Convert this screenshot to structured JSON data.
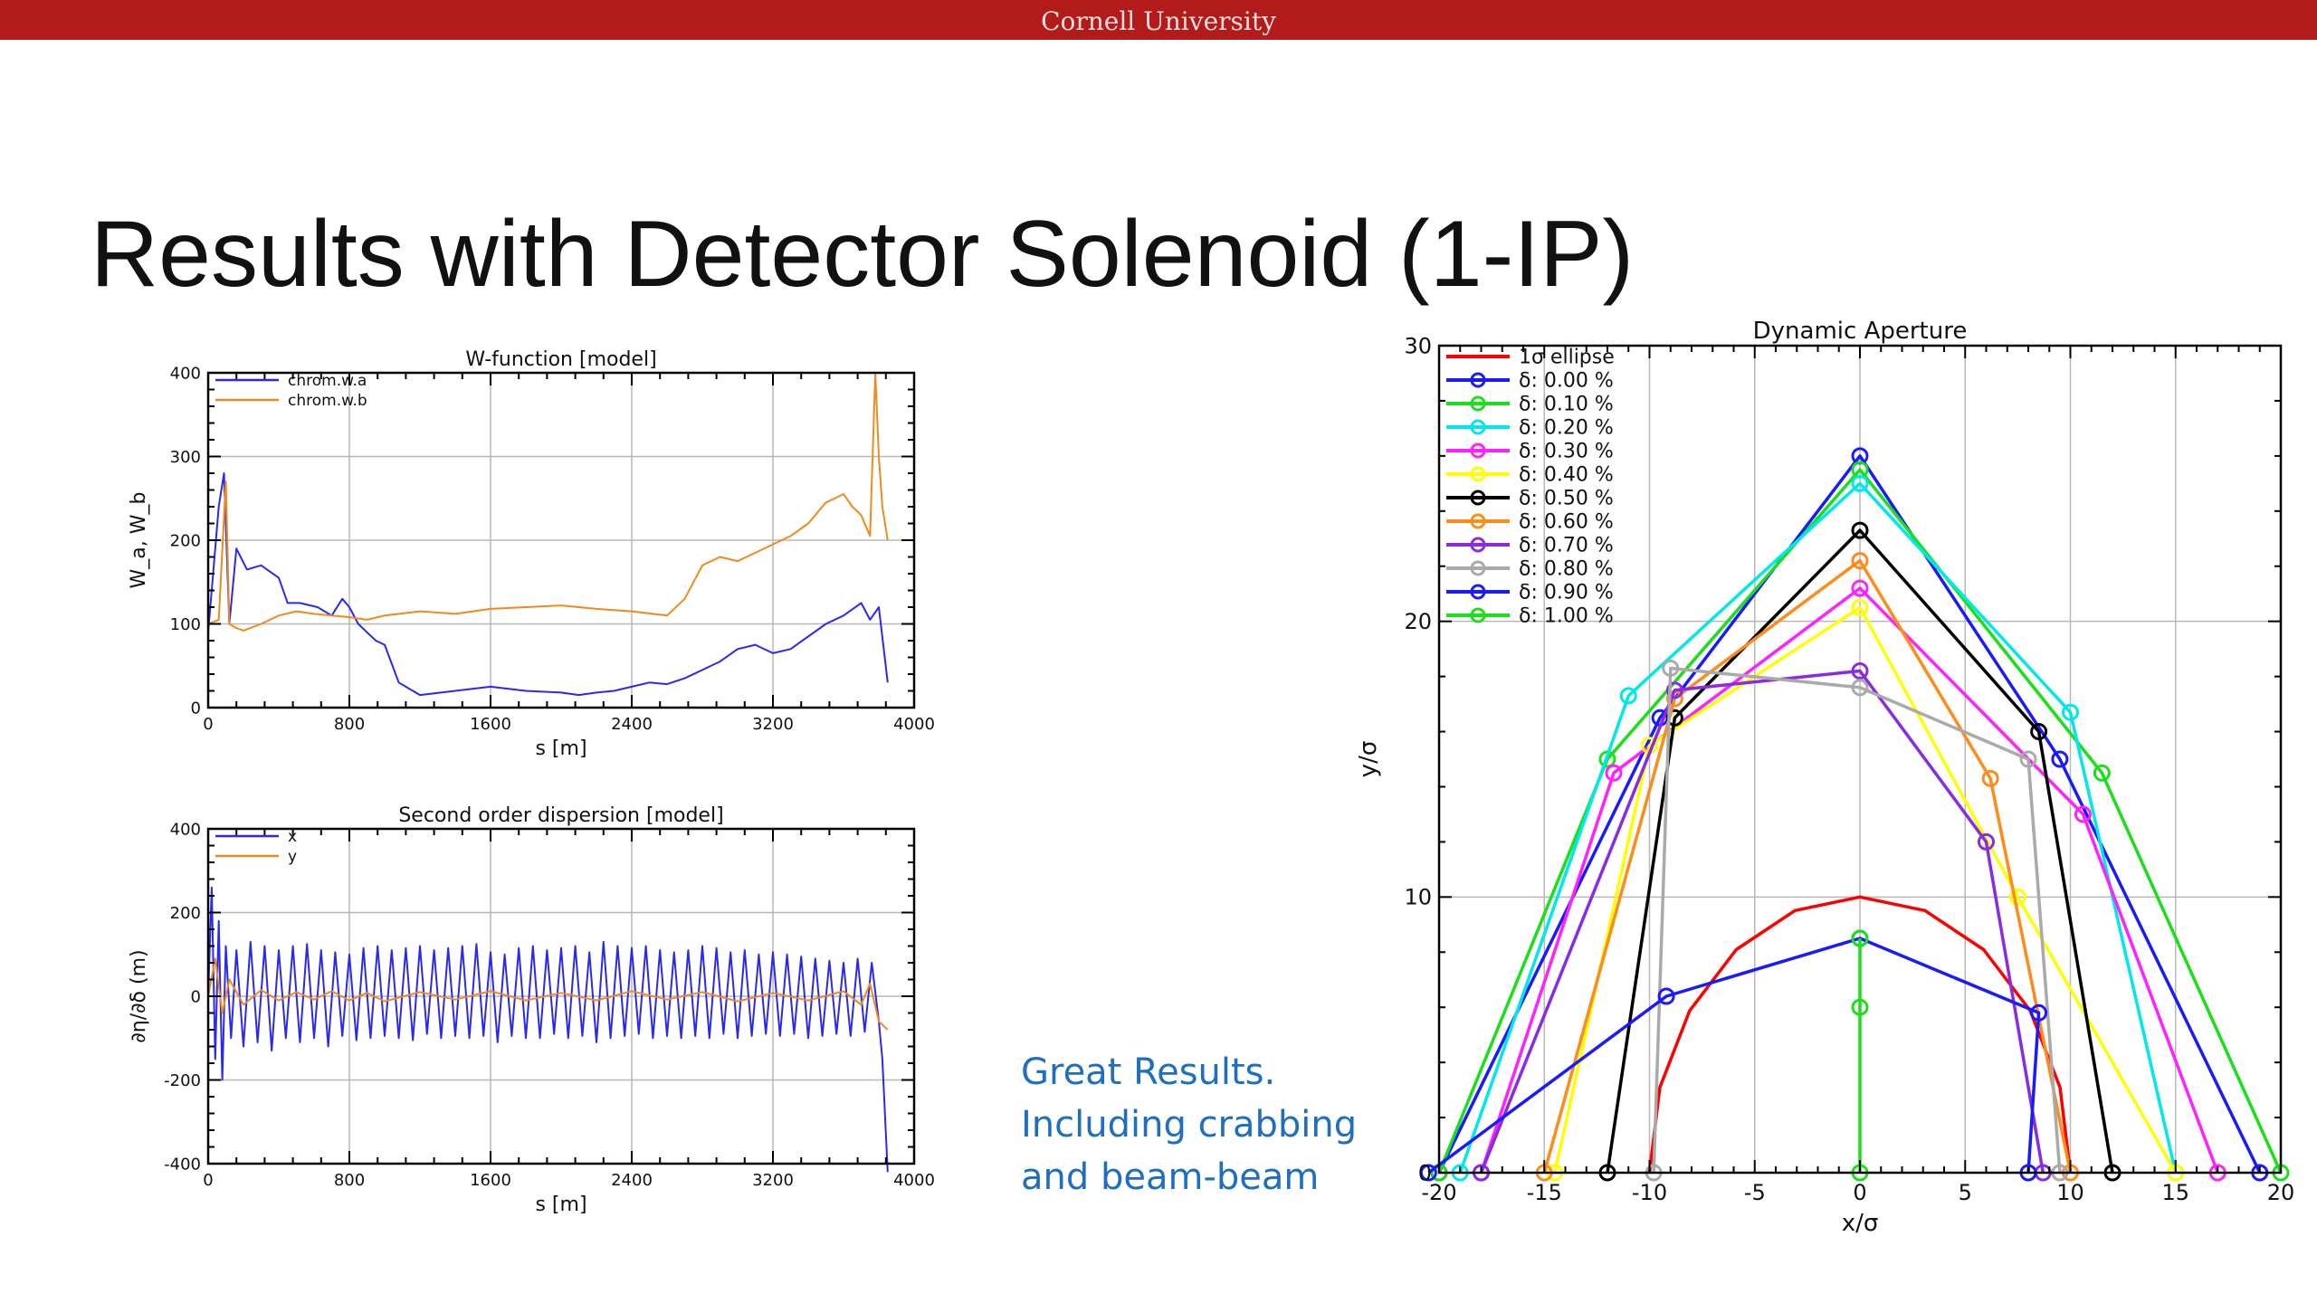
{
  "header": {
    "institution": "Cornell University"
  },
  "slide": {
    "title": "Results with Detector Solenoid (1-IP)",
    "note_lines": [
      "Great Results.",
      "Including crabbing",
      "and beam-beam"
    ]
  },
  "colors": {
    "header_bar": "#b31b1b",
    "note_text": "#1f6fc0"
  },
  "chart_data": [
    {
      "type": "line",
      "title": "W-function [model]",
      "xlabel": "s [m]",
      "ylabel": "W_a, W_b",
      "xlim": [
        0,
        4000
      ],
      "ylim": [
        0,
        400
      ],
      "xticks": [
        0,
        800,
        1600,
        2400,
        3200,
        4000
      ],
      "yticks": [
        0,
        100,
        200,
        300,
        400
      ],
      "grid": true,
      "legend": "top-left",
      "series": [
        {
          "name": "chrom.w.a",
          "color": "#2a2aee",
          "x": [
            0,
            60,
            90,
            120,
            160,
            220,
            300,
            400,
            450,
            520,
            620,
            700,
            760,
            800,
            850,
            900,
            950,
            1000,
            1080,
            1200,
            1400,
            1600,
            1800,
            2000,
            2100,
            2200,
            2300,
            2400,
            2500,
            2600,
            2700,
            2800,
            2900,
            3000,
            3100,
            3200,
            3300,
            3400,
            3500,
            3600,
            3700,
            3750,
            3800,
            3850
          ],
          "y": [
            90,
            240,
            280,
            100,
            190,
            165,
            170,
            155,
            125,
            125,
            120,
            110,
            130,
            120,
            100,
            90,
            80,
            75,
            30,
            15,
            20,
            25,
            20,
            18,
            15,
            18,
            20,
            25,
            30,
            28,
            35,
            45,
            55,
            70,
            75,
            65,
            70,
            85,
            100,
            110,
            125,
            105,
            120,
            30
          ]
        },
        {
          "name": "chrom.w.b",
          "color": "#ef8a1f",
          "x": [
            0,
            60,
            100,
            120,
            160,
            200,
            300,
            400,
            500,
            600,
            700,
            800,
            900,
            1000,
            1200,
            1400,
            1600,
            1800,
            2000,
            2200,
            2400,
            2600,
            2700,
            2800,
            2900,
            3000,
            3100,
            3200,
            3300,
            3400,
            3500,
            3600,
            3650,
            3700,
            3750,
            3780,
            3800,
            3820,
            3850
          ],
          "y": [
            100,
            105,
            270,
            100,
            95,
            92,
            100,
            110,
            115,
            112,
            110,
            108,
            105,
            110,
            115,
            112,
            118,
            120,
            122,
            118,
            115,
            110,
            130,
            170,
            180,
            175,
            185,
            195,
            205,
            220,
            245,
            255,
            240,
            230,
            205,
            400,
            300,
            240,
            200
          ]
        }
      ]
    },
    {
      "type": "line",
      "title": "Second order dispersion [model]",
      "xlabel": "s [m]",
      "ylabel": "∂η/∂δ (m)",
      "xlim": [
        0,
        4000
      ],
      "ylim": [
        -400,
        400
      ],
      "xticks": [
        0,
        800,
        1600,
        2400,
        3200,
        4000
      ],
      "yticks": [
        -400,
        -200,
        0,
        200,
        400
      ],
      "grid": true,
      "legend": "top-left",
      "series": [
        {
          "name": "x",
          "color": "#2a2aee",
          "x": [
            0,
            20,
            40,
            60,
            80,
            100,
            130,
            160,
            200,
            240,
            280,
            320,
            360,
            400,
            440,
            480,
            520,
            560,
            600,
            640,
            680,
            720,
            760,
            800,
            840,
            880,
            920,
            960,
            1000,
            1040,
            1080,
            1120,
            1160,
            1200,
            1240,
            1280,
            1320,
            1360,
            1400,
            1440,
            1480,
            1520,
            1560,
            1600,
            1640,
            1680,
            1720,
            1760,
            1800,
            1840,
            1880,
            1920,
            1960,
            2000,
            2040,
            2080,
            2120,
            2160,
            2200,
            2240,
            2280,
            2320,
            2360,
            2400,
            2440,
            2480,
            2520,
            2560,
            2600,
            2640,
            2680,
            2720,
            2760,
            2800,
            2840,
            2880,
            2920,
            2960,
            3000,
            3040,
            3080,
            3120,
            3160,
            3200,
            3240,
            3280,
            3320,
            3360,
            3400,
            3440,
            3480,
            3520,
            3560,
            3600,
            3640,
            3680,
            3720,
            3760,
            3800,
            3820,
            3850
          ],
          "y": [
            0,
            260,
            -150,
            180,
            -200,
            120,
            -100,
            110,
            -120,
            130,
            -110,
            120,
            -130,
            110,
            -100,
            120,
            -110,
            125,
            -100,
            110,
            -120,
            105,
            -95,
            100,
            -105,
            115,
            -100,
            120,
            -95,
            110,
            -100,
            115,
            -105,
            120,
            -90,
            110,
            -100,
            115,
            -95,
            120,
            -100,
            125,
            -95,
            105,
            -110,
            100,
            -95,
            115,
            -100,
            120,
            -100,
            110,
            -90,
            115,
            -100,
            120,
            -95,
            105,
            -110,
            130,
            -100,
            120,
            -95,
            115,
            -90,
            120,
            -100,
            110,
            -95,
            105,
            -100,
            110,
            -95,
            120,
            -100,
            115,
            -90,
            105,
            -100,
            110,
            -95,
            100,
            -90,
            105,
            -95,
            100,
            -90,
            95,
            -100,
            90,
            -95,
            85,
            -90,
            80,
            -95,
            90,
            -85,
            80,
            -60,
            -150,
            -420
          ]
        },
        {
          "name": "y",
          "color": "#ef8a1f",
          "x": [
            0,
            40,
            80,
            120,
            200,
            300,
            400,
            500,
            600,
            700,
            800,
            900,
            1000,
            1200,
            1400,
            1600,
            1800,
            2000,
            2200,
            2400,
            2600,
            2800,
            3000,
            3200,
            3400,
            3600,
            3700,
            3750,
            3800,
            3850
          ],
          "y": [
            0,
            90,
            -40,
            40,
            -20,
            15,
            -10,
            10,
            -8,
            12,
            -10,
            8,
            -12,
            10,
            -8,
            12,
            -10,
            8,
            -10,
            12,
            -8,
            10,
            -12,
            8,
            -10,
            12,
            -20,
            30,
            -60,
            -80
          ]
        }
      ]
    },
    {
      "type": "line",
      "title": "Dynamic Aperture",
      "xlabel": "x/σ",
      "ylabel": "y/σ",
      "xlim": [
        -20,
        20
      ],
      "ylim": [
        0,
        30
      ],
      "xticks": [
        -20,
        -15,
        -10,
        -5,
        0,
        5,
        10,
        15,
        20
      ],
      "yticks": [
        0,
        10,
        20,
        30
      ],
      "grid": true,
      "legend": "top-left",
      "series": [
        {
          "name": "1σ ellipse",
          "color": "#ff0000",
          "marker": "none",
          "x": [
            -10,
            -9.51,
            -8.09,
            -5.88,
            -3.09,
            0,
            3.09,
            5.88,
            8.09,
            9.51,
            10
          ],
          "y": [
            0,
            3.09,
            5.88,
            8.09,
            9.51,
            10,
            9.51,
            8.09,
            5.88,
            3.09,
            0
          ]
        },
        {
          "name": "δ: 0.00 %",
          "color": "#1a1aff",
          "x": [
            -20,
            -9.5,
            0,
            9.5,
            19
          ],
          "y": [
            0,
            16.5,
            26,
            15,
            0
          ]
        },
        {
          "name": "δ: 0.10 %",
          "color": "#19e019",
          "x": [
            -20,
            -12,
            0,
            11.5,
            20
          ],
          "y": [
            0,
            15,
            25.5,
            14.5,
            0
          ]
        },
        {
          "name": "δ: 0.20 %",
          "color": "#00e8e8",
          "x": [
            -19,
            -11,
            0,
            10,
            15
          ],
          "y": [
            0,
            17.3,
            25,
            16.7,
            0
          ]
        },
        {
          "name": "δ: 0.30 %",
          "color": "#ff22ff",
          "x": [
            -18,
            -11.7,
            0,
            10.6,
            17
          ],
          "y": [
            0,
            14.5,
            21.2,
            13,
            0
          ]
        },
        {
          "name": "δ: 0.40 %",
          "color": "#ffff00",
          "x": [
            -14.5,
            -10,
            0,
            7.5,
            15
          ],
          "y": [
            0,
            15.5,
            20.5,
            10,
            0
          ]
        },
        {
          "name": "δ: 0.50 %",
          "color": "#000000",
          "x": [
            -12,
            -8.8,
            0,
            8.5,
            12
          ],
          "y": [
            0,
            16.5,
            23.3,
            16,
            0
          ]
        },
        {
          "name": "δ: 0.60 %",
          "color": "#ff8c1a",
          "x": [
            -15,
            -8.8,
            0,
            6.2,
            10
          ],
          "y": [
            0,
            17.2,
            22.2,
            14.3,
            0
          ]
        },
        {
          "name": "δ: 0.70 %",
          "color": "#8a2be2",
          "x": [
            -18,
            -8.8,
            0,
            6,
            8.7
          ],
          "y": [
            0,
            17.5,
            18.2,
            12,
            0
          ]
        },
        {
          "name": "δ: 0.80 %",
          "color": "#aaaaaa",
          "x": [
            -9.8,
            -9,
            0,
            8,
            9.5
          ],
          "y": [
            0,
            18.3,
            17.6,
            15,
            0
          ]
        },
        {
          "name": "δ: 0.90 %",
          "color": "#1a1aff",
          "x": [
            -20.5,
            -9.2,
            0,
            8.5,
            8
          ],
          "y": [
            0,
            6.4,
            8.5,
            5.8,
            0
          ]
        },
        {
          "name": "δ: 1.00 %",
          "color": "#19e019",
          "x": [
            0,
            0,
            0
          ],
          "y": [
            0,
            6,
            8.5
          ]
        }
      ]
    }
  ]
}
